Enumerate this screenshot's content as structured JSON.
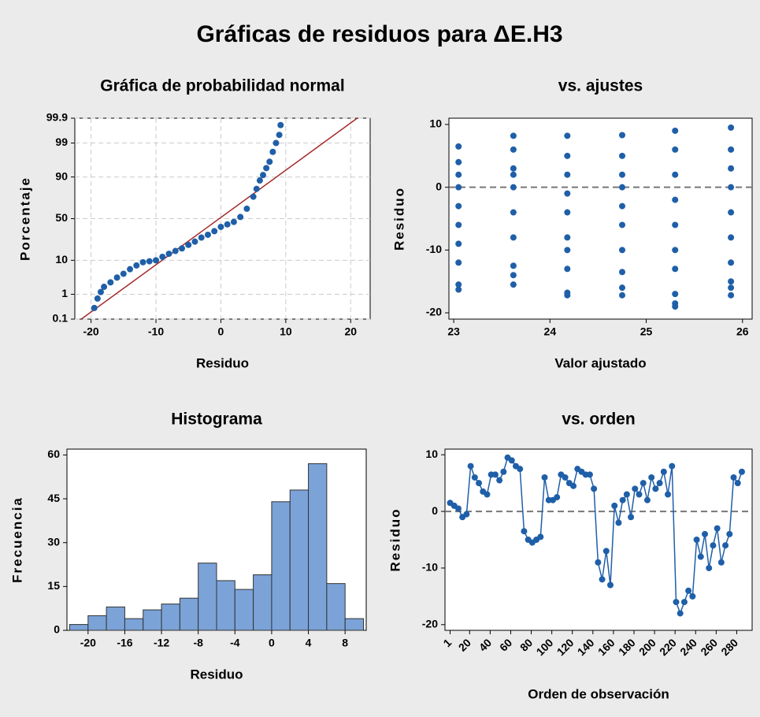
{
  "title": "Gráficas de residuos para ΔE.H3",
  "chart_data": [
    {
      "type": "probability",
      "title": "Gráfica de probabilidad normal",
      "x_label": "Residuo",
      "y_label": "Porcentaje",
      "x": [
        -19.5,
        -19,
        -18.5,
        -18,
        -17,
        -16,
        -15,
        -14,
        -13,
        -12,
        -11,
        -10,
        -9,
        -8,
        -7,
        -6,
        -5,
        -4,
        -3,
        -2,
        -1,
        0,
        1,
        2,
        3,
        4,
        5,
        5.5,
        6,
        6.5,
        7,
        7.5,
        8,
        8.5,
        9,
        9.2
      ],
      "values": [
        0.3,
        0.7,
        1.2,
        1.8,
        2.5,
        3.5,
        4.5,
        6,
        7.5,
        9,
        9.5,
        10,
        12,
        14,
        16,
        18,
        21,
        24,
        28,
        31,
        35,
        40,
        43,
        46,
        52,
        62,
        75,
        82,
        88,
        91,
        94,
        96,
        98,
        99,
        99.5,
        99.8
      ],
      "color": "#1f5fa8",
      "fit_line": {
        "x": [
          -21.5,
          21
        ],
        "y": [
          0.1,
          99.9
        ],
        "color": "#a52a2a"
      },
      "xlim": [
        -22.5,
        23
      ],
      "xticks": [
        -20,
        -10,
        0,
        10,
        20
      ],
      "ylim": [
        0.1,
        99.9
      ],
      "yticks": [
        0.1,
        1,
        10,
        50,
        90,
        99,
        99.9
      ],
      "grid": true
    },
    {
      "type": "scatter",
      "title": "vs. ajustes",
      "x_label": "Valor ajustado",
      "y_label": "Residuo",
      "x": [
        23.05,
        23.05,
        23.05,
        23.05,
        23.05,
        23.05,
        23.05,
        23.05,
        23.05,
        23.05,
        23.62,
        23.62,
        23.62,
        23.62,
        23.62,
        23.62,
        23.62,
        23.62,
        23.62,
        23.62,
        24.18,
        24.18,
        24.18,
        24.18,
        24.18,
        24.18,
        24.18,
        24.18,
        24.18,
        24.18,
        24.75,
        24.75,
        24.75,
        24.75,
        24.75,
        24.75,
        24.75,
        24.75,
        24.75,
        24.75,
        25.3,
        25.3,
        25.3,
        25.3,
        25.3,
        25.3,
        25.3,
        25.3,
        25.3,
        25.3,
        25.88,
        25.88,
        25.88,
        25.88,
        25.88,
        25.88,
        25.88,
        25.88,
        25.88,
        25.88
      ],
      "values": [
        6.5,
        4,
        2,
        0,
        -3,
        -6,
        -9,
        -12,
        -15.5,
        -16.3,
        8.2,
        6,
        3,
        0,
        -4,
        -8,
        -12.5,
        -15.5,
        -14,
        2,
        8.2,
        5,
        2,
        -1,
        -4,
        -8,
        -13,
        -16.8,
        -17.2,
        -10,
        8.3,
        5,
        2,
        -3,
        -6,
        -10,
        -13.5,
        -16,
        -17.2,
        0,
        9,
        6,
        2,
        -2,
        -6,
        -10,
        -13,
        -17,
        -18.5,
        -19,
        9.5,
        6,
        3,
        0,
        -4,
        -8,
        -12,
        -15,
        -17.2,
        -16
      ],
      "color": "#1f5fa8",
      "hline": 0,
      "xlim": [
        22.95,
        26.1
      ],
      "xticks": [
        23,
        24,
        25,
        26
      ],
      "ylim": [
        -21,
        11
      ],
      "yticks": [
        -20,
        -10,
        0,
        10
      ]
    },
    {
      "type": "histogram",
      "title": "Histograma",
      "x_label": "Residuo",
      "y_label": "Frecuencia",
      "bins": [
        -22,
        -20,
        -18,
        -16,
        -14,
        -12,
        -10,
        -8,
        -6,
        -4,
        -2,
        0,
        2,
        4,
        6,
        8,
        10
      ],
      "values": [
        2,
        5,
        8,
        4,
        7,
        9,
        11,
        23,
        17,
        14,
        19,
        44,
        48,
        57,
        16,
        4
      ],
      "color": "#7ba3d8",
      "xlim": [
        -22.3,
        10.3
      ],
      "xticks": [
        -20,
        -16,
        -12,
        -8,
        -4,
        0,
        4,
        8
      ],
      "ylim": [
        0,
        62
      ],
      "yticks": [
        0,
        15,
        30,
        45,
        60
      ]
    },
    {
      "type": "line",
      "title": "vs. orden",
      "x_label": "Orden de observación",
      "y_label": "Residuo",
      "x": [
        1,
        5,
        9,
        13,
        17,
        21,
        25,
        29,
        33,
        37,
        41,
        45,
        49,
        53,
        57,
        61,
        65,
        69,
        73,
        77,
        81,
        85,
        89,
        93,
        97,
        101,
        105,
        109,
        113,
        117,
        121,
        125,
        129,
        133,
        137,
        141,
        145,
        149,
        153,
        157,
        161,
        165,
        169,
        173,
        177,
        181,
        185,
        189,
        193,
        197,
        201,
        205,
        209,
        213,
        217,
        221,
        225,
        229,
        233,
        237,
        241,
        245,
        249,
        253,
        257,
        261,
        265,
        269,
        273,
        277,
        281,
        285
      ],
      "values": [
        1.5,
        1,
        0.5,
        -1,
        -0.5,
        8,
        6,
        5,
        3.5,
        3,
        6.5,
        6.5,
        5.5,
        7,
        9.5,
        9,
        8,
        7.5,
        -3.5,
        -5,
        -5.5,
        -5,
        -4.5,
        6,
        2,
        2,
        2.5,
        6.5,
        6,
        5,
        4.5,
        7.5,
        7,
        6.5,
        6.5,
        4,
        -9,
        -12,
        -7,
        -13,
        1,
        -2,
        2,
        3,
        -1,
        4,
        3,
        5,
        2,
        6,
        4,
        5,
        7,
        3,
        8,
        -16,
        -18,
        -16,
        -14,
        -15,
        -5,
        -8,
        -4,
        -10,
        -6,
        -3,
        -9,
        -6,
        -4,
        6,
        5,
        7
      ],
      "color": "#1f5fa8",
      "hline": 0,
      "xlim": [
        -4,
        295
      ],
      "xticks": [
        1,
        20,
        40,
        60,
        80,
        100,
        120,
        140,
        160,
        180,
        200,
        220,
        240,
        260,
        280
      ],
      "ylim": [
        -21,
        11
      ],
      "yticks": [
        -20,
        -10,
        0,
        10
      ]
    }
  ]
}
